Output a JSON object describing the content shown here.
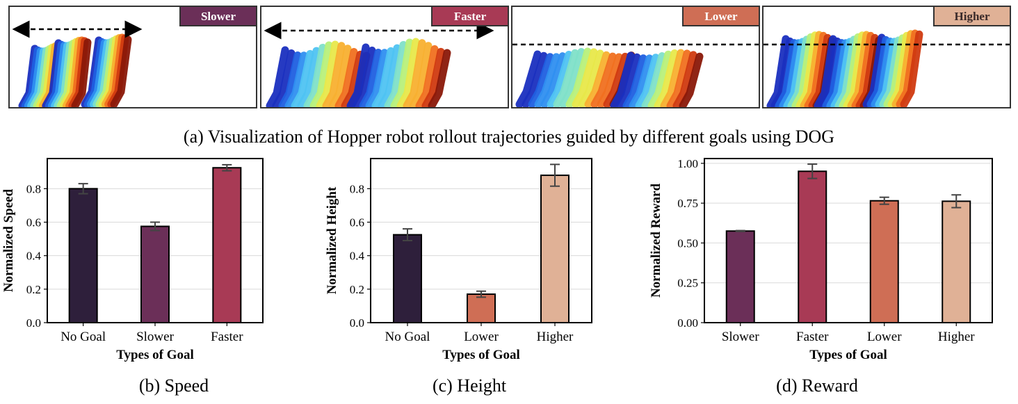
{
  "colors": {
    "no_goal": "#2e1f3b",
    "slower": "#6b2f58",
    "faster": "#a83a55",
    "lower": "#cf6e55",
    "higher": "#e0b196",
    "frame": "#222222",
    "grid": "#d9d9d9"
  },
  "panels": [
    {
      "tag": "Slower",
      "tag_color": "#6b2f58",
      "arrow": "horizontal"
    },
    {
      "tag": "Faster",
      "tag_color": "#a83a55",
      "arrow": "horizontal"
    },
    {
      "tag": "Lower",
      "tag_color": "#cf6e55",
      "arrow": "height"
    },
    {
      "tag": "Higher",
      "tag_color": "#e0b196",
      "arrow": "height"
    }
  ],
  "captions": {
    "a": "(a) Visualization of Hopper robot rollout trajectories guided by different goals using DOG",
    "b": "(b) Speed",
    "c": "(c) Height",
    "d": "(d) Reward"
  },
  "chart_data": [
    {
      "type": "bar",
      "categories": [
        "No Goal",
        "Slower",
        "Faster"
      ],
      "values": [
        0.8,
        0.575,
        0.925
      ],
      "errors": [
        0.03,
        0.025,
        0.018
      ],
      "colors": [
        "#2e1f3b",
        "#6b2f58",
        "#a83a55"
      ],
      "xlabel": "Types of Goal",
      "ylabel": "Normalized Speed",
      "ylim": [
        0,
        0.98
      ],
      "yticks": [
        0.0,
        0.2,
        0.4,
        0.6,
        0.8
      ],
      "ytick_labels": [
        "0.0",
        "0.2",
        "0.4",
        "0.6",
        "0.8"
      ],
      "grid": "y"
    },
    {
      "type": "bar",
      "categories": [
        "No Goal",
        "Lower",
        "Higher"
      ],
      "values": [
        0.525,
        0.17,
        0.88
      ],
      "errors": [
        0.035,
        0.018,
        0.065
      ],
      "colors": [
        "#2e1f3b",
        "#cf6e55",
        "#e0b196"
      ],
      "xlabel": "Types of Goal",
      "ylabel": "Normalized Height",
      "ylim": [
        0,
        0.98
      ],
      "yticks": [
        0.0,
        0.2,
        0.4,
        0.6,
        0.8
      ],
      "ytick_labels": [
        "0.0",
        "0.2",
        "0.4",
        "0.6",
        "0.8"
      ],
      "grid": "y"
    },
    {
      "type": "bar",
      "categories": [
        "Slower",
        "Faster",
        "Lower",
        "Higher"
      ],
      "values": [
        0.575,
        0.95,
        0.765,
        0.762
      ],
      "errors": [
        0.003,
        0.045,
        0.022,
        0.04
      ],
      "colors": [
        "#6b2f58",
        "#a83a55",
        "#cf6e55",
        "#e0b196"
      ],
      "xlabel": "Types of Goal",
      "ylabel": "Normalized Reward",
      "ylim": [
        0,
        1.03
      ],
      "yticks": [
        0.0,
        0.25,
        0.5,
        0.75,
        1.0
      ],
      "ytick_labels": [
        "0.00",
        "0.25",
        "0.50",
        "0.75",
        "1.00"
      ],
      "grid": "y"
    }
  ]
}
